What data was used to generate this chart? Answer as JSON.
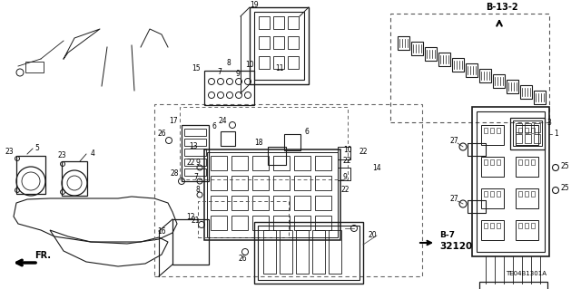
{
  "bg_color": "#ffffff",
  "fig_width": 6.4,
  "fig_height": 3.19,
  "dpi": 100,
  "line_color": "#1a1a1a",
  "b13_label": "B-13-2",
  "b7_label": "B-7",
  "b7_num": "32120",
  "te_label": "TE04B1301A",
  "fr_label": "FR."
}
